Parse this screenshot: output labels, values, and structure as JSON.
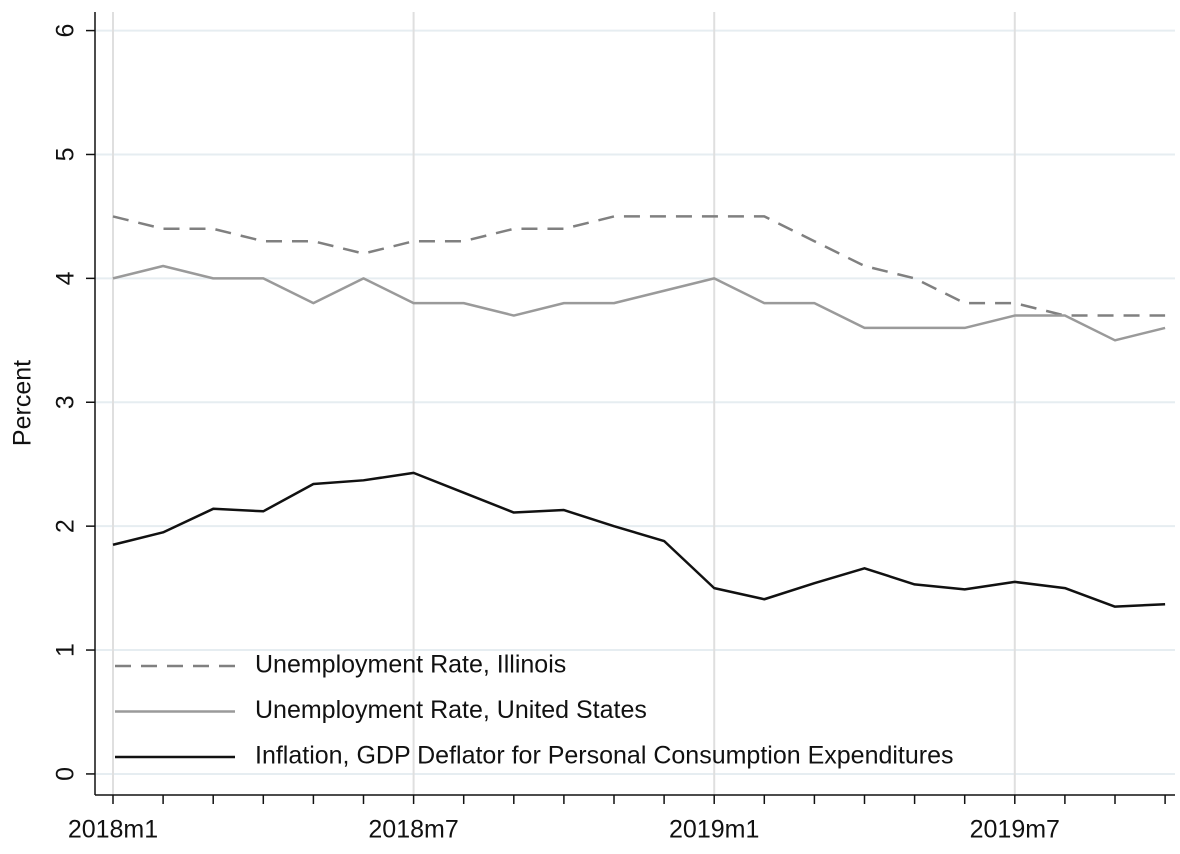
{
  "chart_data": {
    "type": "line",
    "ylabel": "Percent",
    "categories": [
      "2018m1",
      null,
      null,
      null,
      null,
      null,
      "2018m7",
      null,
      null,
      null,
      null,
      null,
      "2019m1",
      null,
      null,
      null,
      null,
      null,
      "2019m7",
      null,
      null,
      null
    ],
    "series": [
      {
        "name": "Unemployment Rate, Illinois",
        "color": "#808080",
        "style": "dashed",
        "values": [
          4.5,
          4.4,
          4.4,
          4.3,
          4.3,
          4.2,
          4.3,
          4.3,
          4.4,
          4.4,
          4.5,
          4.5,
          4.5,
          4.5,
          4.3,
          4.1,
          4.0,
          3.8,
          3.8,
          3.7,
          3.7,
          3.7
        ]
      },
      {
        "name": "Unemployment Rate, United States",
        "color": "#9a9a9a",
        "style": "solid",
        "values": [
          4.0,
          4.1,
          4.0,
          4.0,
          3.8,
          4.0,
          3.8,
          3.8,
          3.7,
          3.8,
          3.8,
          3.9,
          4.0,
          3.8,
          3.8,
          3.6,
          3.6,
          3.6,
          3.7,
          3.7,
          3.5,
          3.6
        ]
      },
      {
        "name": "Inflation, GDP Deflator for Personal Consumption Expenditures",
        "color": "#111111",
        "style": "solid",
        "values": [
          1.85,
          1.95,
          2.14,
          2.12,
          2.34,
          2.37,
          2.43,
          2.27,
          2.11,
          2.13,
          2.0,
          1.88,
          1.5,
          1.41,
          1.54,
          1.66,
          1.53,
          1.49,
          1.55,
          1.5,
          1.35,
          1.37
        ]
      }
    ],
    "ylim": [
      -0.17,
      6.15
    ],
    "yticks": [
      0,
      1,
      2,
      3,
      4,
      5,
      6
    ],
    "grid": true,
    "xgrid": true,
    "legend": "lower left"
  }
}
